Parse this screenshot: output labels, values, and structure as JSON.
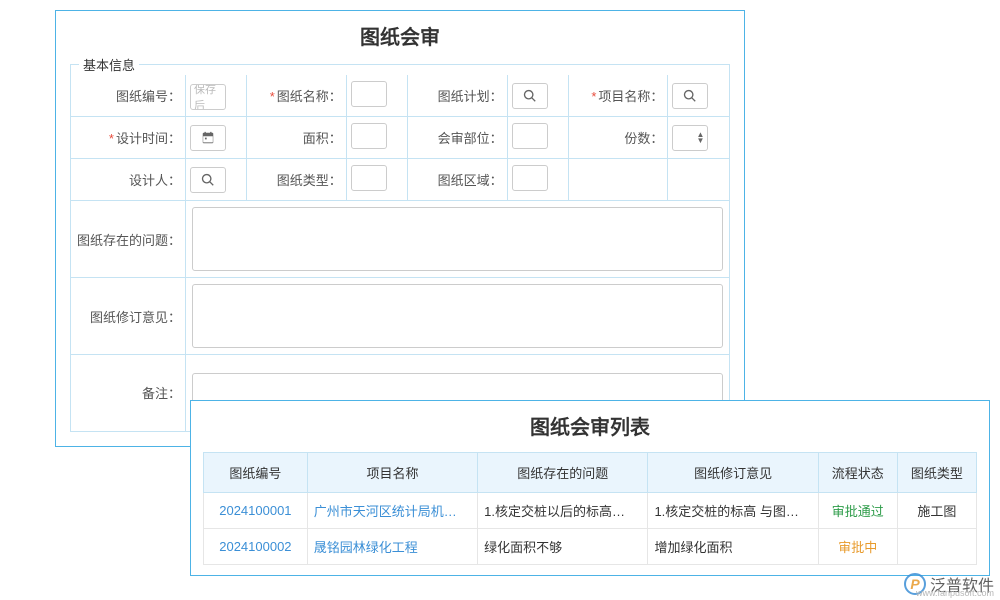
{
  "form": {
    "title": "图纸会审",
    "section_label": "基本信息",
    "fields": {
      "code": {
        "label": "图纸编号：",
        "required": false,
        "placeholder": "保存后",
        "icon": null
      },
      "name": {
        "label": "图纸名称：",
        "required": true,
        "icon": null
      },
      "plan": {
        "label": "图纸计划：",
        "required": false,
        "icon": "search"
      },
      "project": {
        "label": "项目名称：",
        "required": true,
        "icon": "search"
      },
      "design_date": {
        "label": "设计时间：",
        "required": true,
        "icon": "calendar"
      },
      "area": {
        "label": "面积：",
        "required": false,
        "icon": null
      },
      "review_part": {
        "label": "会审部位：",
        "required": false,
        "icon": null
      },
      "copies": {
        "label": "份数：",
        "required": false,
        "icon": "spinner"
      },
      "designer": {
        "label": "设计人：",
        "required": false,
        "icon": "search"
      },
      "type": {
        "label": "图纸类型：",
        "required": false,
        "icon": null
      },
      "region": {
        "label": "图纸区域：",
        "required": false,
        "icon": null
      },
      "problems": {
        "label": "图纸存在的问题："
      },
      "revision": {
        "label": "图纸修订意见："
      },
      "remark": {
        "label": "备注："
      }
    }
  },
  "list": {
    "title": "图纸会审列表",
    "columns": [
      "图纸编号",
      "项目名称",
      "图纸存在的问题",
      "图纸修订意见",
      "流程状态",
      "图纸类型"
    ],
    "rows": [
      {
        "code": "2024100001",
        "project": "广州市天河区统计局机…",
        "problem": "1.核定交桩以后的标高…",
        "revision": "1.核定交桩的标高 与图…",
        "status": "审批通过",
        "status_class": "status-pass",
        "type": "施工图"
      },
      {
        "code": "2024100002",
        "project": "晟铭园林绿化工程",
        "problem": "绿化面积不够",
        "revision": "增加绿化面积",
        "status": "审批中",
        "status_class": "status-pending",
        "type": ""
      }
    ]
  },
  "watermark": {
    "brand": "泛普软件",
    "url": "www.fanpusoft.com",
    "logo_letter": "P"
  },
  "colors": {
    "panel_border": "#4db3e6",
    "cell_border": "#c5e3f3",
    "header_bg": "#eaf5fd",
    "link": "#3b8fd6",
    "required": "#e74c3c",
    "status_pass": "#2e9c4a",
    "status_pending": "#e89b2d"
  }
}
